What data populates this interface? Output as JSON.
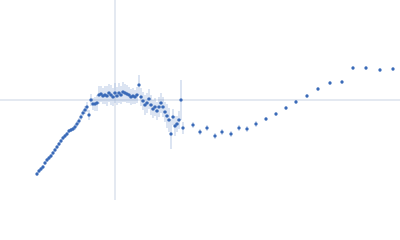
{
  "chart_data": {
    "type": "scatter",
    "color": "#3a6ab8",
    "line_color": "#c9d3e3",
    "xlim": [
      0,
      400
    ],
    "ylim": [
      -100,
      100
    ],
    "hline": 0,
    "vline": 115,
    "x": [
      37,
      39,
      41,
      43,
      45,
      47,
      49,
      51,
      53,
      55,
      57,
      59,
      61,
      63,
      65,
      67,
      69,
      71,
      73,
      75,
      77,
      79,
      81,
      83,
      85,
      87,
      89,
      91,
      93,
      95,
      97,
      99,
      101,
      103,
      105,
      107,
      109,
      111,
      113,
      115,
      117,
      119,
      121,
      123,
      125,
      127,
      129,
      131,
      133,
      135,
      137,
      139,
      141,
      143,
      145,
      147,
      149,
      151,
      153,
      155,
      157,
      159,
      161,
      163,
      165,
      167,
      169,
      171,
      173,
      175,
      177,
      179,
      181,
      183,
      193,
      200,
      207,
      215,
      222,
      231,
      239,
      247,
      256,
      266,
      276,
      286,
      296,
      307,
      318,
      330,
      342,
      353,
      366,
      380,
      393
    ],
    "values": [
      -74,
      -71,
      -69,
      -67,
      -63,
      -60,
      -58,
      -56,
      -53,
      -50,
      -47,
      -44,
      -41,
      -38,
      -36,
      -34,
      -31,
      -30,
      -29,
      -27,
      -24,
      -21,
      -17,
      -13,
      -10,
      -7,
      -15,
      0,
      -4,
      -4,
      -3,
      5,
      6,
      4,
      5,
      4,
      7,
      5,
      3,
      7,
      4,
      7,
      5,
      8,
      7,
      6,
      5,
      3,
      4,
      3,
      5,
      15,
      3,
      -1,
      -5,
      -3,
      1,
      -5,
      -9,
      -7,
      -11,
      -7,
      -3,
      -7,
      -12,
      -16,
      -20,
      -34,
      -17,
      -26,
      -24,
      -20,
      0,
      -28,
      -25,
      -32,
      -28,
      -36,
      -32,
      -34,
      -28,
      -29,
      -24,
      -19,
      -14,
      -8,
      -2,
      4,
      11,
      17,
      18,
      32,
      32,
      30,
      31
    ],
    "errors": [
      2,
      2,
      2,
      2,
      2,
      2,
      2,
      2,
      2,
      2,
      2,
      2,
      2,
      2,
      2,
      2,
      2,
      2,
      2,
      3,
      3,
      3,
      3,
      3,
      4,
      5,
      5,
      6,
      6,
      7,
      8,
      9,
      8,
      8,
      9,
      10,
      9,
      10,
      9,
      10,
      9,
      10,
      9,
      10,
      9,
      9,
      8,
      8,
      8,
      7,
      8,
      10,
      9,
      9,
      10,
      10,
      10,
      10,
      9,
      9,
      9,
      10,
      10,
      10,
      10,
      12,
      12,
      15,
      8,
      10,
      8,
      9,
      20,
      6,
      3,
      3,
      3,
      3,
      3,
      3,
      3,
      3,
      3,
      2,
      2,
      2,
      2,
      2,
      2,
      2,
      2,
      2,
      2,
      2,
      2
    ]
  }
}
